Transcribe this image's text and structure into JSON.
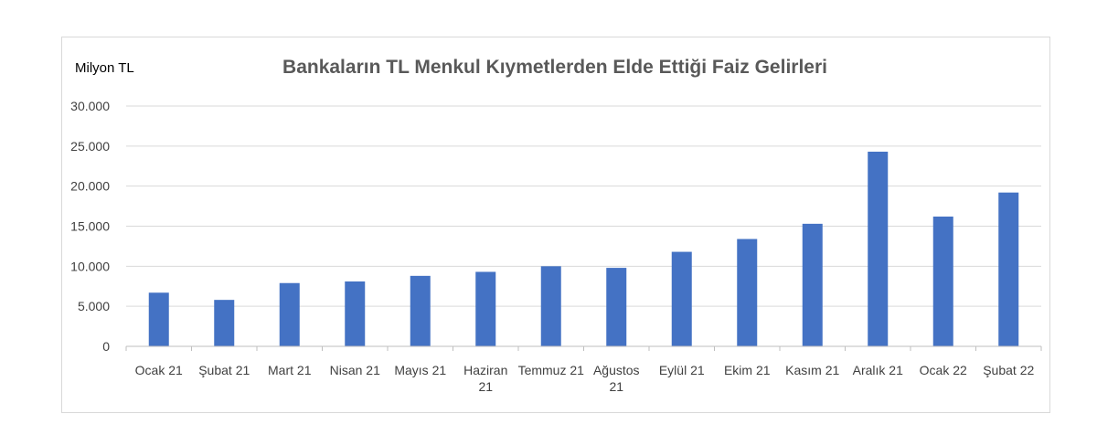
{
  "chart_data": {
    "type": "bar",
    "title": "Bankaların TL Menkul Kıymetlerden Elde Ettiği Faiz Gelirleri",
    "ylabel": "Milyon TL",
    "xlabel": "",
    "categories": [
      "Ocak 21",
      "Şubat 21",
      "Mart 21",
      "Nisan 21",
      "Mayıs 21",
      "Haziran 21",
      "Temmuz 21",
      "Ağustos 21",
      "Eylül 21",
      "Ekim 21",
      "Kasım 21",
      "Aralık 21",
      "Ocak 22",
      "Şubat 22"
    ],
    "values": [
      6700,
      5800,
      7900,
      8100,
      8800,
      9300,
      10000,
      9800,
      11800,
      13400,
      15300,
      24300,
      16200,
      19200
    ],
    "ylim": [
      0,
      30000
    ],
    "yticks": [
      0,
      5000,
      10000,
      15000,
      20000,
      25000,
      30000
    ],
    "ytick_labels": [
      "0",
      "5.000",
      "10.000",
      "15.000",
      "20.000",
      "25.000",
      "30.000"
    ],
    "bar_color": "#4472c4",
    "grid": true,
    "legend": "none"
  }
}
